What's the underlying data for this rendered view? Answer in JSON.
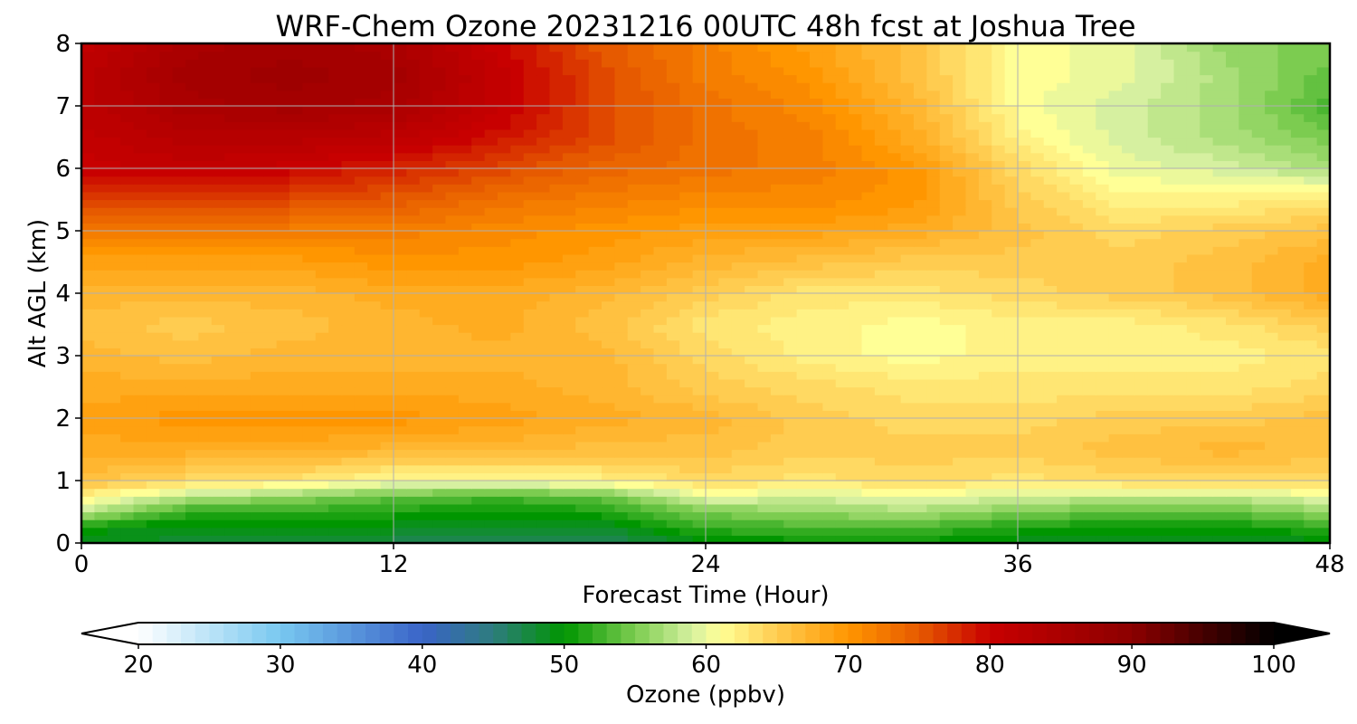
{
  "chart_data": {
    "type": "heatmap",
    "title": "WRF-Chem Ozone  20231216 00UTC 48h fcst at Joshua Tree",
    "xlabel": "Forecast Time (Hour)",
    "ylabel": "Alt AGL (km)",
    "xlim": [
      0,
      48
    ],
    "ylim": [
      0,
      8
    ],
    "xticks": [
      0,
      12,
      24,
      36,
      48
    ],
    "yticks": [
      0,
      1,
      2,
      3,
      4,
      5,
      6,
      7,
      8
    ],
    "grid": true,
    "x": [
      0,
      4,
      8,
      12,
      16,
      20,
      24,
      28,
      32,
      36,
      40,
      44,
      48
    ],
    "y": [
      0,
      0.25,
      0.5,
      0.75,
      1,
      1.5,
      2,
      2.5,
      3,
      3.5,
      4,
      4.5,
      5,
      5.5,
      6,
      6.5,
      7,
      7.5,
      8
    ],
    "z": [
      [
        49,
        48,
        48,
        47,
        46,
        46,
        49,
        50,
        50,
        49,
        48,
        48,
        49
      ],
      [
        50,
        49,
        49,
        49,
        48,
        48,
        52,
        53,
        53,
        51,
        50,
        50,
        52
      ],
      [
        58,
        52,
        52,
        51,
        50,
        51,
        55,
        56,
        57,
        55,
        54,
        54,
        56
      ],
      [
        62,
        58,
        56,
        54,
        53,
        54,
        60,
        59,
        60,
        59,
        58,
        58,
        60
      ],
      [
        66,
        64,
        63,
        61,
        61,
        62,
        64,
        63,
        64,
        63,
        64,
        64,
        64
      ],
      [
        68,
        68,
        68,
        67,
        67,
        66,
        66,
        65,
        65,
        65,
        66,
        67,
        66
      ],
      [
        69,
        70,
        70,
        70,
        69,
        68,
        67,
        65,
        64,
        64,
        65,
        65,
        66
      ],
      [
        68,
        68,
        68,
        68,
        68,
        67,
        65,
        64,
        63,
        63,
        63,
        63,
        64
      ],
      [
        67,
        66,
        67,
        67,
        67,
        67,
        64,
        62,
        61,
        62,
        62,
        62,
        63
      ],
      [
        66,
        65,
        66,
        67,
        68,
        66,
        63,
        62,
        61,
        62,
        62,
        63,
        65
      ],
      [
        67,
        67,
        67,
        68,
        68,
        67,
        65,
        63,
        63,
        64,
        65,
        66,
        68
      ],
      [
        69,
        69,
        69,
        70,
        70,
        69,
        67,
        66,
        65,
        65,
        65,
        66,
        68
      ],
      [
        72,
        72,
        72,
        72,
        71,
        70,
        69,
        69,
        68,
        66,
        64,
        65,
        66
      ],
      [
        76,
        76,
        76,
        75,
        73,
        72,
        71,
        71,
        70,
        65,
        62,
        62,
        63
      ],
      [
        80,
        81,
        80,
        78,
        76,
        74,
        73,
        72,
        70,
        64,
        60,
        59,
        57
      ],
      [
        81,
        83,
        83,
        82,
        79,
        76,
        73,
        72,
        68,
        62,
        59,
        57,
        55
      ],
      [
        82,
        85,
        86,
        85,
        81,
        76,
        73,
        71,
        67,
        61,
        59,
        57,
        53
      ],
      [
        82,
        86,
        87,
        86,
        81,
        76,
        72,
        70,
        66,
        61,
        60,
        57,
        54
      ],
      [
        81,
        85,
        86,
        85,
        80,
        75,
        72,
        69,
        66,
        61,
        60,
        56,
        55
      ]
    ],
    "colorbar": {
      "label": "Ozone  (ppbv)",
      "min": 20,
      "max": 100,
      "extend": "both",
      "ticks": [
        20,
        30,
        40,
        50,
        60,
        70,
        80,
        90,
        100
      ],
      "stops": [
        {
          "v": 20,
          "c": "#ffffff"
        },
        {
          "v": 30,
          "c": "#78c8f0"
        },
        {
          "v": 40,
          "c": "#3a64c8"
        },
        {
          "v": 45,
          "c": "#2e7c7e"
        },
        {
          "v": 50,
          "c": "#009600"
        },
        {
          "v": 55,
          "c": "#7ccc50"
        },
        {
          "v": 59,
          "c": "#d6f0a0"
        },
        {
          "v": 61,
          "c": "#ffff96"
        },
        {
          "v": 65,
          "c": "#ffcc50"
        },
        {
          "v": 70,
          "c": "#ff9600"
        },
        {
          "v": 75,
          "c": "#e65a00"
        },
        {
          "v": 80,
          "c": "#c80000"
        },
        {
          "v": 90,
          "c": "#8c0000"
        },
        {
          "v": 100,
          "c": "#000000"
        }
      ]
    }
  }
}
